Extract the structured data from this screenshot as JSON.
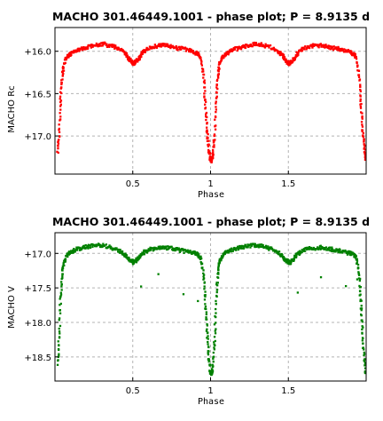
{
  "chart_data": [
    {
      "type": "scatter",
      "title": "MACHO 301.46449.1001 - phase plot; P = 8.9135 d",
      "xlabel": "Phase",
      "ylabel": "MACHO Rc",
      "color": "#ff0000",
      "xlim": [
        0,
        2
      ],
      "ylim": [
        17.45,
        15.72
      ],
      "y_inverted": true,
      "grid": true,
      "xticks": [
        0.5,
        1.0,
        1.5
      ],
      "xtick_labels": [
        "0.5",
        "1",
        "1.5"
      ],
      "yticks": [
        16.0,
        16.5,
        17.0
      ],
      "ytick_labels": [
        "+16.0",
        "+16.5",
        "+17.0"
      ],
      "series": [
        {
          "x": [
            0.01,
            0.02,
            0.03,
            0.04,
            0.05,
            0.07,
            0.09,
            0.11,
            0.14,
            0.18,
            0.22,
            0.26,
            0.3,
            0.34,
            0.38,
            0.42,
            0.45,
            0.47,
            0.49,
            0.5,
            0.51,
            0.53,
            0.55,
            0.58,
            0.62,
            0.66,
            0.7,
            0.74,
            0.78,
            0.82,
            0.86,
            0.89,
            0.91,
            0.93,
            0.95,
            0.96,
            0.97,
            0.98,
            0.99,
            1.0,
            1.01,
            1.02,
            1.03,
            1.04,
            1.05,
            1.07,
            1.09,
            1.11,
            1.14,
            1.18,
            1.22,
            1.26,
            1.3,
            1.34,
            1.38,
            1.42,
            1.45,
            1.47,
            1.49,
            1.5,
            1.51,
            1.53,
            1.55,
            1.58,
            1.62,
            1.66,
            1.7,
            1.74,
            1.78,
            1.82,
            1.86,
            1.89,
            1.91,
            1.93,
            1.95,
            1.96,
            1.97,
            1.98,
            1.99
          ],
          "y": [
            17.2,
            16.95,
            16.55,
            16.3,
            16.15,
            16.05,
            16.03,
            16.0,
            15.97,
            15.95,
            15.93,
            15.91,
            15.9,
            15.92,
            15.94,
            15.98,
            16.03,
            16.08,
            16.12,
            16.13,
            16.12,
            16.08,
            16.02,
            15.97,
            15.94,
            15.92,
            15.92,
            15.93,
            15.95,
            15.96,
            15.98,
            16.0,
            16.02,
            16.06,
            16.3,
            16.6,
            16.9,
            17.1,
            17.25,
            17.28,
            17.2,
            16.95,
            16.55,
            16.3,
            16.15,
            16.05,
            16.03,
            16.0,
            15.97,
            15.95,
            15.93,
            15.91,
            15.9,
            15.92,
            15.94,
            15.98,
            16.03,
            16.08,
            16.12,
            16.13,
            16.12,
            16.08,
            16.02,
            15.97,
            15.94,
            15.92,
            15.92,
            15.93,
            15.95,
            15.96,
            15.98,
            16.0,
            16.02,
            16.06,
            16.3,
            16.6,
            16.9,
            17.1,
            17.25
          ]
        }
      ]
    },
    {
      "type": "scatter",
      "title": "MACHO 301.46449.1001 - phase plot; P = 8.9135 d",
      "xlabel": "Phase",
      "ylabel": "MACHO V",
      "color": "#008000",
      "xlim": [
        0,
        2
      ],
      "ylim": [
        18.85,
        16.7
      ],
      "y_inverted": true,
      "grid": true,
      "xticks": [
        0.5,
        1.0,
        1.5
      ],
      "xtick_labels": [
        "0.5",
        "1",
        "1.5"
      ],
      "yticks": [
        17.0,
        17.5,
        18.0,
        18.5
      ],
      "ytick_labels": [
        "+17.0",
        "+17.5",
        "+18.0",
        "+18.5"
      ],
      "series": [
        {
          "x": [
            0.01,
            0.02,
            0.03,
            0.04,
            0.05,
            0.07,
            0.09,
            0.11,
            0.14,
            0.18,
            0.22,
            0.26,
            0.3,
            0.34,
            0.38,
            0.42,
            0.45,
            0.47,
            0.49,
            0.5,
            0.51,
            0.53,
            0.55,
            0.58,
            0.62,
            0.66,
            0.7,
            0.74,
            0.78,
            0.82,
            0.86,
            0.89,
            0.91,
            0.93,
            0.95,
            0.96,
            0.97,
            0.98,
            0.99,
            1.0,
            1.01,
            1.02,
            1.03,
            1.04,
            1.05,
            1.07,
            1.09,
            1.11,
            1.14,
            1.18,
            1.22,
            1.26,
            1.3,
            1.34,
            1.38,
            1.42,
            1.45,
            1.47,
            1.49,
            1.5,
            1.51,
            1.53,
            1.55,
            1.58,
            1.62,
            1.66,
            1.7,
            1.74,
            1.78,
            1.82,
            1.86,
            1.89,
            1.91,
            1.93,
            1.95,
            1.96,
            1.97,
            1.98,
            1.99
          ],
          "y": [
            18.6,
            18.2,
            17.65,
            17.3,
            17.12,
            17.02,
            16.98,
            16.95,
            16.92,
            16.9,
            16.88,
            16.87,
            16.87,
            16.89,
            16.92,
            16.96,
            17.02,
            17.07,
            17.1,
            17.12,
            17.1,
            17.06,
            17.0,
            16.95,
            16.92,
            16.91,
            16.9,
            16.91,
            16.93,
            16.95,
            16.97,
            16.98,
            17.0,
            17.05,
            17.3,
            17.7,
            18.1,
            18.45,
            18.7,
            18.75,
            18.6,
            18.2,
            17.65,
            17.3,
            17.12,
            17.02,
            16.98,
            16.95,
            16.92,
            16.9,
            16.88,
            16.87,
            16.87,
            16.89,
            16.92,
            16.96,
            17.02,
            17.07,
            17.1,
            17.12,
            17.1,
            17.06,
            17.0,
            16.95,
            16.92,
            16.91,
            16.9,
            16.91,
            16.93,
            16.95,
            16.97,
            16.98,
            17.0,
            17.05,
            17.3,
            17.7,
            18.1,
            18.45,
            18.7
          ]
        },
        {
          "x": [
            0.55,
            0.66,
            0.82,
            0.91,
            1.55,
            1.7,
            1.86,
            1.94,
            1.95
          ],
          "y": [
            17.45,
            17.3,
            17.55,
            17.7,
            17.55,
            17.35,
            17.45,
            17.35,
            17.55
          ]
        }
      ]
    }
  ]
}
